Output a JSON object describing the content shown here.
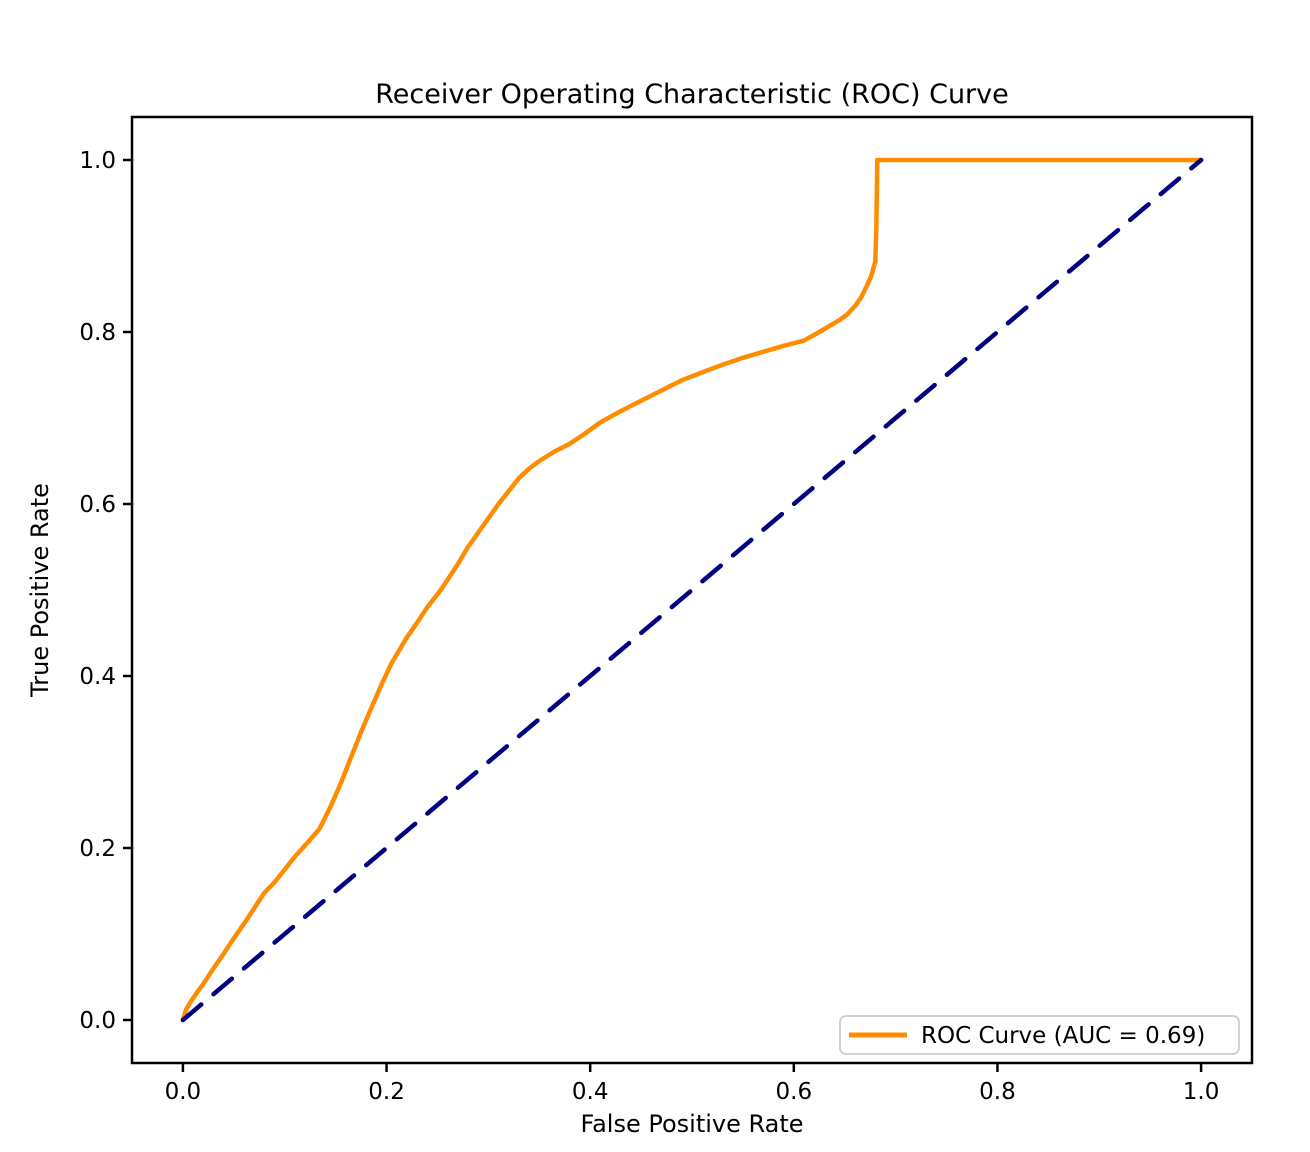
{
  "chart_data": {
    "type": "line",
    "title": "Receiver Operating Characteristic (ROC) Curve",
    "xlabel": "False Positive Rate",
    "ylabel": "True Positive Rate",
    "xlim": [
      -0.05,
      1.05
    ],
    "ylim": [
      -0.05,
      1.05
    ],
    "x_ticks": [
      0.0,
      0.2,
      0.4,
      0.6,
      0.8,
      1.0
    ],
    "x_tick_labels": [
      "0.0",
      "0.2",
      "0.4",
      "0.6",
      "0.8",
      "1.0"
    ],
    "y_ticks": [
      0.0,
      0.2,
      0.4,
      0.6,
      0.8,
      1.0
    ],
    "y_tick_labels": [
      "0.0",
      "0.2",
      "0.4",
      "0.6",
      "0.8",
      "1.0"
    ],
    "grid": false,
    "auc": 0.69,
    "legend": {
      "position": "lower right",
      "entries": [
        {
          "label": "ROC Curve (AUC = 0.69)",
          "color": "#ff8c00",
          "line_style": "solid"
        }
      ]
    },
    "colors": {
      "roc_curve": "#ff8c00",
      "chance_diagonal": "#000080",
      "text": "#000000",
      "spine": "#000000",
      "legend_border": "#cccccc",
      "background": "#ffffff"
    },
    "series": [
      {
        "id": "roc-curve",
        "name": "ROC Curve (AUC = 0.69)",
        "color": "#ff8c00",
        "line_style": "solid",
        "line_width": 4.5,
        "in_legend": true,
        "points": [
          [
            0.0,
            0.0
          ],
          [
            0.003,
            0.012
          ],
          [
            0.008,
            0.022
          ],
          [
            0.015,
            0.034
          ],
          [
            0.02,
            0.042
          ],
          [
            0.03,
            0.06
          ],
          [
            0.04,
            0.077
          ],
          [
            0.05,
            0.095
          ],
          [
            0.06,
            0.112
          ],
          [
            0.07,
            0.13
          ],
          [
            0.08,
            0.148
          ],
          [
            0.09,
            0.16
          ],
          [
            0.1,
            0.175
          ],
          [
            0.11,
            0.19
          ],
          [
            0.12,
            0.203
          ],
          [
            0.134,
            0.222
          ],
          [
            0.145,
            0.248
          ],
          [
            0.155,
            0.275
          ],
          [
            0.165,
            0.305
          ],
          [
            0.175,
            0.335
          ],
          [
            0.184,
            0.36
          ],
          [
            0.195,
            0.39
          ],
          [
            0.205,
            0.415
          ],
          [
            0.22,
            0.445
          ],
          [
            0.23,
            0.462
          ],
          [
            0.24,
            0.48
          ],
          [
            0.252,
            0.498
          ],
          [
            0.26,
            0.512
          ],
          [
            0.27,
            0.53
          ],
          [
            0.28,
            0.55
          ],
          [
            0.295,
            0.575
          ],
          [
            0.31,
            0.6
          ],
          [
            0.32,
            0.615
          ],
          [
            0.33,
            0.63
          ],
          [
            0.34,
            0.641
          ],
          [
            0.35,
            0.65
          ],
          [
            0.365,
            0.661
          ],
          [
            0.38,
            0.67
          ],
          [
            0.395,
            0.682
          ],
          [
            0.41,
            0.695
          ],
          [
            0.43,
            0.708
          ],
          [
            0.45,
            0.72
          ],
          [
            0.47,
            0.732
          ],
          [
            0.49,
            0.744
          ],
          [
            0.51,
            0.753
          ],
          [
            0.53,
            0.762
          ],
          [
            0.55,
            0.77
          ],
          [
            0.57,
            0.777
          ],
          [
            0.59,
            0.784
          ],
          [
            0.61,
            0.79
          ],
          [
            0.625,
            0.8
          ],
          [
            0.635,
            0.807
          ],
          [
            0.645,
            0.814
          ],
          [
            0.652,
            0.82
          ],
          [
            0.66,
            0.83
          ],
          [
            0.666,
            0.84
          ],
          [
            0.671,
            0.852
          ],
          [
            0.676,
            0.865
          ],
          [
            0.68,
            0.882
          ],
          [
            0.681,
            0.92
          ],
          [
            0.682,
            1.0
          ],
          [
            0.75,
            1.0
          ],
          [
            0.85,
            1.0
          ],
          [
            0.93,
            1.0
          ],
          [
            1.0,
            1.0
          ]
        ]
      },
      {
        "id": "chance-diagonal",
        "color": "#000080",
        "line_style": "dashed",
        "line_width": 4.5,
        "in_legend": false,
        "points": [
          [
            0.0,
            0.0
          ],
          [
            1.0,
            1.0
          ]
        ]
      }
    ]
  }
}
